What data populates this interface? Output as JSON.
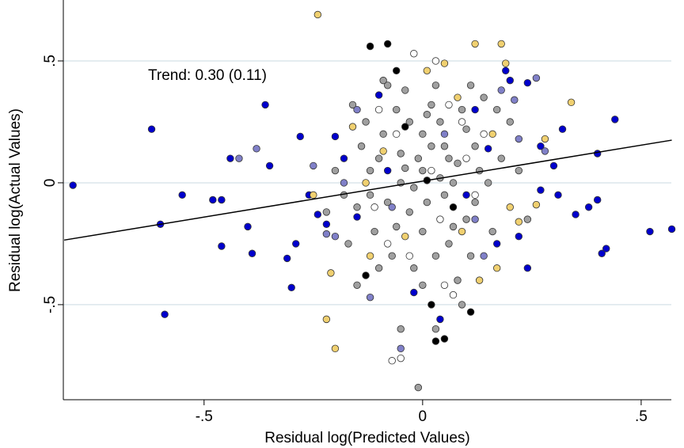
{
  "chart_data": {
    "type": "scatter",
    "xlabel": "Residual log(Predicted Values)",
    "ylabel": "Residual log(Actual Values)",
    "annotation": "Trend: 0.30 (0.11)",
    "xlim": [
      -0.822,
      0.569
    ],
    "ylim": [
      -0.89,
      0.75
    ],
    "xticks": [
      {
        "value": -0.5,
        "label": "-.5"
      },
      0,
      {
        "value": 0.5,
        "label": ".5"
      }
    ],
    "yticks": [
      {
        "value": -0.5,
        "label": "-.5"
      },
      0,
      {
        "value": 0.5,
        "label": ".5"
      }
    ],
    "grid": true,
    "fit_line": {
      "color": "#000000",
      "x": [
        -0.82,
        0.57
      ],
      "y": [
        -0.235,
        0.175
      ]
    },
    "series": [
      {
        "color": "#a0a0a0",
        "x": [
          -0.1,
          -0.05,
          0,
          0.05,
          0.02,
          -0.03,
          0.08,
          -0.08,
          0.1,
          -0.12,
          0.04,
          -0.06,
          0,
          0.06,
          -0.02,
          0.12,
          -0.15,
          0.15,
          -0.09,
          0.09,
          -0.04,
          0.03,
          -0.07,
          0.11,
          0,
          0.01,
          -0.01,
          0.07,
          -0.11,
          0.13,
          -0.14,
          0.16,
          -0.17,
          0.18,
          -0.05,
          0.05,
          -0.02,
          0.03,
          -0.08,
          0.08,
          0.1,
          -0.1,
          0.14,
          -0.13,
          0.2,
          -0.2,
          0.02,
          -0.03,
          0.06,
          -0.06,
          0,
          -0.05,
          0.03,
          -0.01,
          0.22,
          -0.18,
          0.11,
          -0.09,
          0.04,
          -0.04,
          0.07,
          0.01,
          -0.12,
          0.12,
          -0.16,
          0.17,
          0.09,
          -0.15,
          0.24,
          -0.22
        ],
        "y": [
          0.1,
          0,
          0.05,
          -0.05,
          0.15,
          -0.12,
          0.08,
          -0.08,
          -0.15,
          0.05,
          0.25,
          0.3,
          -0.2,
          -0.25,
          -0.35,
          0.15,
          -0.1,
          0,
          0.2,
          0.3,
          0.38,
          0.4,
          -0.3,
          -0.3,
          0.2,
          -0.08,
          0.1,
          0,
          -0.2,
          0.05,
          0.15,
          -0.2,
          -0.25,
          0.1,
          0.12,
          0.15,
          -0.02,
          -0.3,
          0.4,
          -0.4,
          0.22,
          -0.35,
          0.35,
          0.25,
          0.25,
          0.05,
          0.32,
          0.25,
          0.1,
          -0.18,
          -0.42,
          -0.6,
          -0.6,
          -0.84,
          0.05,
          -0.05,
          0.4,
          0.42,
          0.02,
          0.06,
          -0.18,
          0.28,
          -0.05,
          -0.08,
          0.32,
          0.3,
          -0.5,
          -0.42,
          -0.15,
          -0.12
        ]
      },
      {
        "color": "#0000cc",
        "x": [
          -0.8,
          -0.62,
          -0.6,
          -0.59,
          -0.55,
          -0.48,
          -0.46,
          -0.46,
          -0.44,
          -0.4,
          -0.39,
          -0.35,
          -0.36,
          -0.31,
          -0.3,
          -0.29,
          -0.28,
          -0.26,
          -0.24,
          -0.22,
          -0.2,
          -0.18,
          -0.15,
          -0.1,
          0.2,
          0.22,
          0.24,
          0.24,
          0.27,
          0.27,
          0.3,
          0.31,
          0.32,
          0.35,
          0.38,
          0.4,
          0.4,
          0.41,
          0.42,
          0.44,
          0.52,
          0.57,
          0.19,
          0.04,
          -0.02,
          0.15,
          0.1,
          -0.08,
          0.12,
          0.17
        ],
        "y": [
          -0.01,
          0.22,
          -0.17,
          -0.54,
          -0.05,
          -0.07,
          -0.07,
          -0.26,
          0.1,
          -0.18,
          -0.29,
          0.07,
          0.32,
          -0.31,
          -0.43,
          -0.25,
          0.19,
          -0.05,
          -0.13,
          -0.17,
          0.19,
          0.1,
          -0.14,
          0.36,
          0.42,
          -0.22,
          0.41,
          -0.35,
          -0.03,
          0.15,
          0.07,
          -0.05,
          0.22,
          -0.13,
          -0.1,
          0.12,
          -0.07,
          -0.29,
          -0.27,
          0.26,
          -0.2,
          -0.19,
          0.46,
          -0.56,
          -0.45,
          0.14,
          -0.05,
          0.05,
          0.3,
          -0.25
        ]
      },
      {
        "color": "#8080c8",
        "x": [
          -0.38,
          -0.42,
          -0.25,
          -0.22,
          -0.18,
          -0.12,
          -0.05,
          0.21,
          0.26,
          0.28,
          0.18,
          -0.2,
          0.12,
          0.05,
          -0.15,
          0.14,
          0.22,
          -0.07
        ],
        "y": [
          0.14,
          0.1,
          0.07,
          -0.21,
          0,
          -0.47,
          -0.68,
          0.34,
          0.43,
          0.13,
          0.38,
          -0.22,
          -0.15,
          0.2,
          0.3,
          -0.3,
          0.18,
          -0.1
        ]
      },
      {
        "color": "#f0d070",
        "x": [
          -0.24,
          -0.2,
          -0.22,
          -0.21,
          -0.25,
          0.12,
          0.18,
          0.19,
          0.26,
          0.34,
          0.28,
          0.17,
          0.13,
          0.01,
          0.05,
          -0.12,
          0.2,
          -0.16,
          0.09,
          0.16,
          -0.09,
          0.08,
          -0.04,
          0.22,
          -0.13
        ],
        "y": [
          0.69,
          -0.68,
          -0.56,
          -0.37,
          -0.05,
          0.57,
          0.57,
          0.49,
          -0.09,
          0.33,
          0.18,
          -0.35,
          -0.4,
          0.46,
          0.49,
          -0.3,
          -0.1,
          0.23,
          -0.2,
          0.2,
          0.13,
          0.35,
          -0.22,
          -0.16,
          0
        ]
      },
      {
        "color": "#ffffff",
        "x": [
          -0.02,
          0.03,
          -0.05,
          -0.07,
          0.05,
          0.07,
          -0.1,
          0.1,
          -0.03,
          0.12,
          -0.06,
          0.04,
          0.09,
          -0.11,
          0.02,
          0.14,
          -0.08,
          0.06
        ],
        "y": [
          0.53,
          0.5,
          -0.72,
          -0.73,
          -0.42,
          -0.46,
          0.3,
          0.1,
          -0.3,
          -0.05,
          0.2,
          -0.15,
          0.25,
          -0.1,
          0.05,
          0.2,
          -0.25,
          0.32
        ]
      },
      {
        "color": "#000000",
        "x": [
          -0.12,
          -0.08,
          -0.06,
          -0.13,
          0.02,
          0.03,
          0.05,
          0.11,
          -0.04,
          0.07,
          0.01
        ],
        "y": [
          0.56,
          0.57,
          0.46,
          -0.38,
          -0.5,
          -0.65,
          -0.64,
          -0.53,
          0.23,
          -0.1,
          0.01
        ]
      }
    ]
  }
}
